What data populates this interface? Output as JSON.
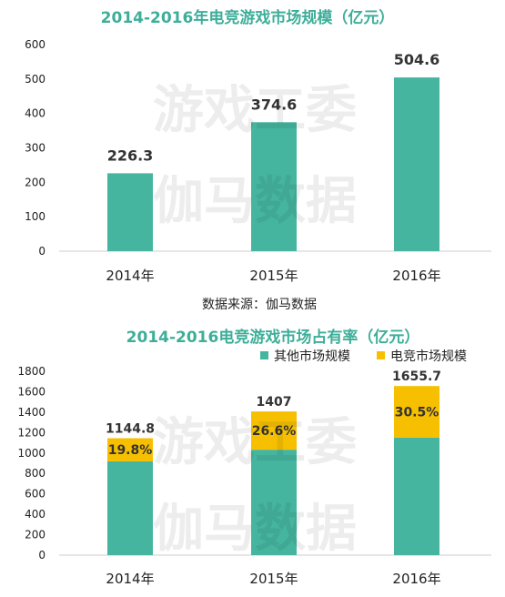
{
  "watermark": {
    "line1": "游戏工委",
    "line2": "伽马数据"
  },
  "colors": {
    "teal": "#45b59f",
    "yellow": "#f6c000",
    "title": "#3dae99"
  },
  "chart_data": [
    {
      "type": "bar",
      "title": "2014-2016年电竞游戏市场规模（亿元）",
      "categories": [
        "2014年",
        "2015年",
        "2016年"
      ],
      "values": [
        226.3,
        374.6,
        504.6
      ],
      "value_labels": [
        "226.3",
        "374.6",
        "504.6"
      ],
      "ylim": [
        0,
        600
      ],
      "yticks": [
        "0",
        "100",
        "200",
        "300",
        "400",
        "500",
        "600"
      ],
      "grid": false,
      "source": "数据来源：伽马数据"
    },
    {
      "type": "bar",
      "stacked": true,
      "title": "2014-2016电竞游戏市场占有率（亿元）",
      "categories": [
        "2014年",
        "2015年",
        "2016年"
      ],
      "series": [
        {
          "name": "其他市场规模",
          "color": "#45b59f",
          "values": [
            918.5,
            1032.4,
            1151.1
          ]
        },
        {
          "name": "电竞市场规模",
          "color": "#f6c000",
          "values": [
            226.3,
            374.6,
            504.6
          ]
        }
      ],
      "totals": [
        1144.8,
        1407,
        1655.7
      ],
      "total_labels": [
        "1144.8",
        "1407",
        "1655.7"
      ],
      "share_labels": [
        "19.8%",
        "26.6%",
        "30.5%"
      ],
      "ylim": [
        0,
        1800
      ],
      "yticks": [
        "0",
        "200",
        "400",
        "600",
        "800",
        "1000",
        "1200",
        "1400",
        "1600",
        "1800"
      ],
      "legend_position": "top-right",
      "grid": false
    }
  ]
}
